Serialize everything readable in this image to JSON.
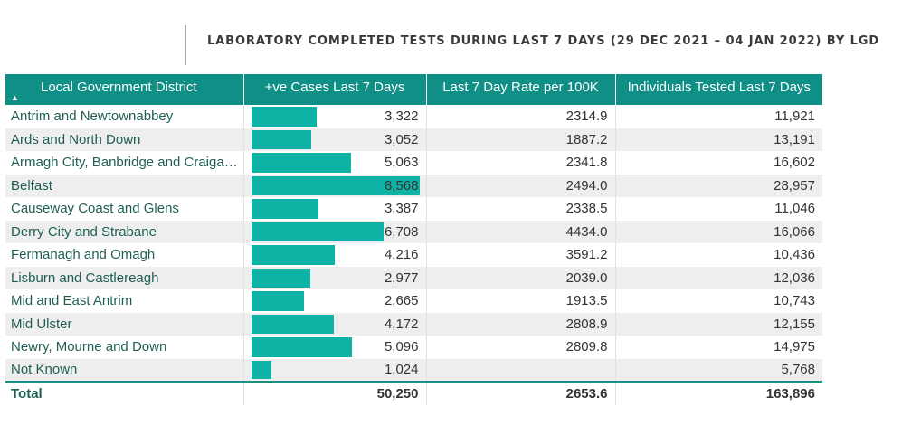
{
  "title": "LABORATORY COMPLETED TESTS DURING LAST 7 DAYS (29 DEC 2021 – 04 JAN 2022) BY LGD",
  "table": {
    "headers": [
      "Local Government District",
      "+ve Cases Last 7 Days",
      "Last 7 Day Rate per 100K",
      "Individuals Tested Last 7 Days"
    ],
    "sort_icon": "▲",
    "bar_color": "#0fb3a5",
    "header_color": "#0f8f86",
    "bar_max": 8568,
    "rows": [
      {
        "district": "Antrim and Newtownabbey",
        "cases": "3,322",
        "cases_value": 3322,
        "rate": "2314.9",
        "tested": "11,921"
      },
      {
        "district": "Ards and North Down",
        "cases": "3,052",
        "cases_value": 3052,
        "rate": "1887.2",
        "tested": "13,191"
      },
      {
        "district": "Armagh City, Banbridge and Craigavon",
        "cases": "5,063",
        "cases_value": 5063,
        "rate": "2341.8",
        "tested": "16,602"
      },
      {
        "district": "Belfast",
        "cases": "8,568",
        "cases_value": 8568,
        "rate": "2494.0",
        "tested": "28,957"
      },
      {
        "district": "Causeway Coast and Glens",
        "cases": "3,387",
        "cases_value": 3387,
        "rate": "2338.5",
        "tested": "11,046"
      },
      {
        "district": "Derry City and Strabane",
        "cases": "6,708",
        "cases_value": 6708,
        "rate": "4434.0",
        "tested": "16,066"
      },
      {
        "district": "Fermanagh and Omagh",
        "cases": "4,216",
        "cases_value": 4216,
        "rate": "3591.2",
        "tested": "10,436"
      },
      {
        "district": "Lisburn and Castlereagh",
        "cases": "2,977",
        "cases_value": 2977,
        "rate": "2039.0",
        "tested": "12,036"
      },
      {
        "district": "Mid and East Antrim",
        "cases": "2,665",
        "cases_value": 2665,
        "rate": "1913.5",
        "tested": "10,743"
      },
      {
        "district": "Mid Ulster",
        "cases": "4,172",
        "cases_value": 4172,
        "rate": "2808.9",
        "tested": "12,155"
      },
      {
        "district": "Newry, Mourne and Down",
        "cases": "5,096",
        "cases_value": 5096,
        "rate": "2809.8",
        "tested": "14,975"
      },
      {
        "district": "Not Known",
        "cases": "1,024",
        "cases_value": 1024,
        "rate": "",
        "tested": "5,768"
      }
    ],
    "total": {
      "label": "Total",
      "cases": "50,250",
      "rate": "2653.6",
      "tested": "163,896"
    }
  }
}
